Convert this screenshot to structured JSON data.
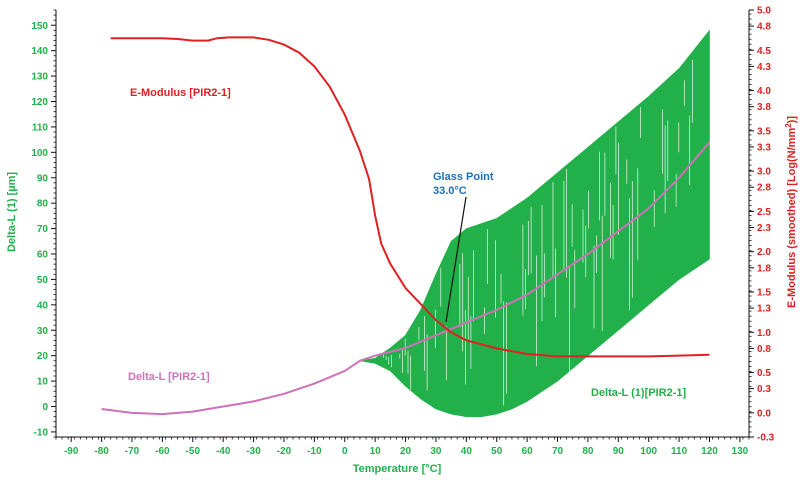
{
  "chart_data": {
    "type": "line",
    "xlabel": "Temperature [°C]",
    "ylabel_left": "Delta-L (1) [µm]",
    "ylabel_right_text": "E-Modulus (smoothed) [Log(N/mm",
    "ylabel_right_sup": "2",
    "ylabel_right_close": ")]",
    "xlim": [
      -95,
      133
    ],
    "ylim_left": [
      -12,
      156
    ],
    "ylim_right": [
      -0.3,
      5.0
    ],
    "x_ticks": [
      -90,
      -80,
      -70,
      -60,
      -50,
      -40,
      -30,
      -20,
      -10,
      0,
      10,
      20,
      30,
      40,
      50,
      60,
      70,
      80,
      90,
      100,
      110,
      120,
      130
    ],
    "y_left_ticks": [
      -10,
      0,
      10,
      20,
      30,
      40,
      50,
      60,
      70,
      80,
      90,
      100,
      110,
      120,
      130,
      140,
      150
    ],
    "y_right_ticks": [
      "-0.3",
      "0.0",
      "0.3",
      "0.5",
      "0.8",
      "1.0",
      "1.3",
      "1.5",
      "1.8",
      "2.0",
      "2.3",
      "2.5",
      "2.8",
      "3.0",
      "3.3",
      "3.5",
      "3.8",
      "4.0",
      "4.3",
      "4.5",
      "4.8",
      "5.0"
    ],
    "colors": {
      "e_modulus": "#e02020",
      "delta_l_smooth": "#d070b8",
      "delta_l_raw": "#22b04a",
      "left_axis": "#22b04a",
      "right_axis": "#e02020",
      "annotation": "#1e6fb8"
    },
    "series": [
      {
        "name": "E-Modulus [PIR2-1]",
        "axis": "right",
        "points": [
          [
            -77,
            4.65
          ],
          [
            -60,
            4.65
          ],
          [
            -55,
            4.64
          ],
          [
            -50,
            4.62
          ],
          [
            -45,
            4.62
          ],
          [
            -42,
            4.65
          ],
          [
            -38,
            4.66
          ],
          [
            -30,
            4.66
          ],
          [
            -25,
            4.63
          ],
          [
            -20,
            4.57
          ],
          [
            -15,
            4.47
          ],
          [
            -10,
            4.3
          ],
          [
            -5,
            4.05
          ],
          [
            0,
            3.7
          ],
          [
            5,
            3.25
          ],
          [
            8,
            2.9
          ],
          [
            10,
            2.45
          ],
          [
            12,
            2.1
          ],
          [
            15,
            1.85
          ],
          [
            20,
            1.55
          ],
          [
            25,
            1.35
          ],
          [
            30,
            1.15
          ],
          [
            35,
            1.0
          ],
          [
            40,
            0.9
          ],
          [
            50,
            0.8
          ],
          [
            60,
            0.73
          ],
          [
            70,
            0.7
          ],
          [
            80,
            0.7
          ],
          [
            90,
            0.7
          ],
          [
            100,
            0.7
          ],
          [
            110,
            0.71
          ],
          [
            120,
            0.72
          ]
        ]
      },
      {
        "name": "Delta-L [PIR2-1]",
        "axis": "left",
        "points": [
          [
            -80,
            -1
          ],
          [
            -70,
            -2.5
          ],
          [
            -60,
            -3
          ],
          [
            -50,
            -2
          ],
          [
            -40,
            0
          ],
          [
            -35,
            1
          ],
          [
            -30,
            2
          ],
          [
            -20,
            5
          ],
          [
            -10,
            9
          ],
          [
            0,
            14
          ],
          [
            5,
            18
          ],
          [
            10,
            20
          ],
          [
            20,
            23
          ],
          [
            30,
            28
          ],
          [
            40,
            33
          ],
          [
            50,
            38
          ],
          [
            60,
            44
          ],
          [
            70,
            52
          ],
          [
            80,
            60
          ],
          [
            90,
            69
          ],
          [
            100,
            78
          ],
          [
            110,
            90
          ],
          [
            120,
            104
          ]
        ]
      },
      {
        "name": "Delta-L (1)[PIR2-1]",
        "axis": "left",
        "upper": [
          [
            5,
            18
          ],
          [
            10,
            19
          ],
          [
            15,
            23
          ],
          [
            20,
            28
          ],
          [
            25,
            38
          ],
          [
            30,
            52
          ],
          [
            35,
            65
          ],
          [
            40,
            70
          ],
          [
            45,
            72
          ],
          [
            50,
            74
          ],
          [
            60,
            82
          ],
          [
            70,
            92
          ],
          [
            80,
            102
          ],
          [
            90,
            112
          ],
          [
            100,
            122
          ],
          [
            110,
            133
          ],
          [
            120,
            148
          ]
        ],
        "lower": [
          [
            5,
            18
          ],
          [
            10,
            17
          ],
          [
            15,
            14
          ],
          [
            20,
            8
          ],
          [
            25,
            3
          ],
          [
            30,
            -1
          ],
          [
            35,
            -3
          ],
          [
            40,
            -4
          ],
          [
            45,
            -4
          ],
          [
            50,
            -3
          ],
          [
            55,
            -1
          ],
          [
            60,
            2
          ],
          [
            70,
            10
          ],
          [
            80,
            20
          ],
          [
            90,
            30
          ],
          [
            100,
            40
          ],
          [
            110,
            50
          ],
          [
            120,
            58
          ]
        ]
      }
    ],
    "annotations": [
      {
        "text": "E-Modulus [PIR2-1]",
        "color": "#e02020"
      },
      {
        "text": "Delta-L [PIR2-1]",
        "color": "#d070b8"
      },
      {
        "text": "Delta-L (1)[PIR2-1]",
        "color": "#22b04a"
      },
      {
        "text": "Glass Point",
        "color": "#1e6fb8"
      },
      {
        "text": "33.0°C",
        "color": "#1e6fb8"
      }
    ],
    "grid": false
  }
}
